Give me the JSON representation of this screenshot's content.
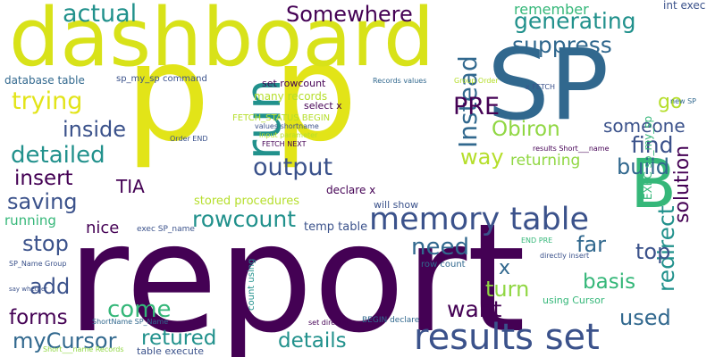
{
  "colors": {
    "background": "#ffffff",
    "purple": "#440154",
    "indigo": "#3b528b",
    "blue": "#31688e",
    "teal": "#21918c",
    "green": "#35b779",
    "lime": "#90d743",
    "yellow": "#e2e418"
  },
  "words": [
    {
      "text": "report",
      "color": "#440154",
      "vertical": false
    },
    {
      "text": "p",
      "color": "#e2e418",
      "vertical": false
    },
    {
      "text": "p",
      "color": "#e2e418",
      "vertical": false
    },
    {
      "text": "SP",
      "color": "#31688e",
      "vertical": false
    },
    {
      "text": "dashboard",
      "color": "#d8e219",
      "vertical": false
    },
    {
      "text": "B",
      "color": "#35b779",
      "vertical": false
    },
    {
      "text": "results set",
      "color": "#3b528b",
      "vertical": false
    },
    {
      "text": "run",
      "color": "#21918c",
      "vertical": true
    },
    {
      "text": "memory table",
      "color": "#3b528b",
      "vertical": false
    },
    {
      "text": "Somewhere",
      "color": "#440154",
      "vertical": false
    },
    {
      "text": "actual",
      "color": "#21918c",
      "vertical": false
    },
    {
      "text": "generating",
      "color": "#21918c",
      "vertical": false
    },
    {
      "text": "suppress",
      "color": "#31688e",
      "vertical": false
    },
    {
      "text": "remember",
      "color": "#35b779",
      "vertical": false
    },
    {
      "text": "int exec",
      "color": "#3b528b",
      "vertical": false
    },
    {
      "text": "trying",
      "color": "#e2e418",
      "vertical": false
    },
    {
      "text": "Instead",
      "color": "#31688e",
      "vertical": true
    },
    {
      "text": "PRE",
      "color": "#440154",
      "vertical": false
    },
    {
      "text": "go",
      "color": "#b5de2b",
      "vertical": false
    },
    {
      "text": "inside",
      "color": "#3b528b",
      "vertical": false
    },
    {
      "text": "Obiron",
      "color": "#90d743",
      "vertical": false
    },
    {
      "text": "someone",
      "color": "#3b528b",
      "vertical": false
    },
    {
      "text": "detailed",
      "color": "#21918c",
      "vertical": false
    },
    {
      "text": "output",
      "color": "#3b528b",
      "vertical": false
    },
    {
      "text": "find",
      "color": "#3b528b",
      "vertical": false
    },
    {
      "text": "solution",
      "color": "#440154",
      "vertical": true
    },
    {
      "text": "insert",
      "color": "#440154",
      "vertical": false
    },
    {
      "text": "way",
      "color": "#b5de2b",
      "vertical": false
    },
    {
      "text": "build",
      "color": "#31688e",
      "vertical": false
    },
    {
      "text": "saving",
      "color": "#3b528b",
      "vertical": false
    },
    {
      "text": "TIA",
      "color": "#440154",
      "vertical": false
    },
    {
      "text": "returning",
      "color": "#90d743",
      "vertical": false
    },
    {
      "text": "rowcount",
      "color": "#21918c",
      "vertical": false
    },
    {
      "text": "need",
      "color": "#31688e",
      "vertical": false
    },
    {
      "text": "redirect",
      "color": "#21918c",
      "vertical": true
    },
    {
      "text": "stop",
      "color": "#3b528b",
      "vertical": false
    },
    {
      "text": "far",
      "color": "#31688e",
      "vertical": false
    },
    {
      "text": "top",
      "color": "#3b528b",
      "vertical": false
    },
    {
      "text": "nice",
      "color": "#440154",
      "vertical": false
    },
    {
      "text": "x",
      "color": "#31688e",
      "vertical": false
    },
    {
      "text": "add",
      "color": "#3b528b",
      "vertical": false
    },
    {
      "text": "basis",
      "color": "#35b779",
      "vertical": false
    },
    {
      "text": "turn",
      "color": "#90d743",
      "vertical": false
    },
    {
      "text": "come",
      "color": "#35b779",
      "vertical": false
    },
    {
      "text": "want",
      "color": "#440154",
      "vertical": false
    },
    {
      "text": "forms",
      "color": "#440154",
      "vertical": false
    },
    {
      "text": "used",
      "color": "#31688e",
      "vertical": false
    },
    {
      "text": "myCursor",
      "color": "#31688e",
      "vertical": false
    },
    {
      "text": "retured",
      "color": "#21918c",
      "vertical": false
    },
    {
      "text": "details",
      "color": "#21918c",
      "vertical": false
    },
    {
      "text": "running",
      "color": "#35b779",
      "vertical": false
    },
    {
      "text": "stored procedures",
      "color": "#b5de2b",
      "vertical": false
    },
    {
      "text": "EXEC sp_my_sp",
      "color": "#35b779",
      "vertical": true
    },
    {
      "text": "temp table",
      "color": "#3b528b",
      "vertical": false
    },
    {
      "text": "database table",
      "color": "#31688e",
      "vertical": false
    },
    {
      "text": "sp_my_sp command",
      "color": "#3b528b",
      "vertical": false
    },
    {
      "text": "set rowcount",
      "color": "#440154",
      "vertical": false
    },
    {
      "text": "many records",
      "color": "#b5de2b",
      "vertical": false
    },
    {
      "text": "select x",
      "color": "#440154",
      "vertical": false
    },
    {
      "text": "FETCH_STATUS BEGIN",
      "color": "#b5de2b",
      "vertical": false
    },
    {
      "text": "Records values",
      "color": "#31688e",
      "vertical": false
    },
    {
      "text": "Group Order",
      "color": "#b5de2b",
      "vertical": false
    },
    {
      "text": "x FETCH",
      "color": "#3b528b",
      "vertical": false
    },
    {
      "text": "new SP",
      "color": "#31688e",
      "vertical": false
    },
    {
      "text": "values shortname",
      "color": "#3b528b",
      "vertical": false
    },
    {
      "text": "input parameter",
      "color": "#b5de2b",
      "vertical": false
    },
    {
      "text": "FETCH NEXT",
      "color": "#440154",
      "vertical": false
    },
    {
      "text": "Order END",
      "color": "#3b528b",
      "vertical": false
    },
    {
      "text": "will show",
      "color": "#3b528b",
      "vertical": false
    },
    {
      "text": "results Short___name",
      "color": "#440154",
      "vertical": false
    },
    {
      "text": "declare x",
      "color": "#440154",
      "vertical": false
    },
    {
      "text": "exec SP_name",
      "color": "#3b528b",
      "vertical": false
    },
    {
      "text": "END PRE",
      "color": "#35b779",
      "vertical": false
    },
    {
      "text": "SP_Name Group",
      "color": "#3b528b",
      "vertical": false
    },
    {
      "text": "count using",
      "color": "#21918c",
      "vertical": true
    },
    {
      "text": "directly insert",
      "color": "#3b528b",
      "vertical": false
    },
    {
      "text": "row count",
      "color": "#31688e",
      "vertical": false
    },
    {
      "text": "using Cursor",
      "color": "#35b779",
      "vertical": false
    },
    {
      "text": "say whether",
      "color": "#3b528b",
      "vertical": false
    },
    {
      "text": "ShortName SP_Name",
      "color": "#31688e",
      "vertical": false
    },
    {
      "text": "set directly",
      "color": "#440154",
      "vertical": false
    },
    {
      "text": "BEGIN declare",
      "color": "#31688e",
      "vertical": false
    },
    {
      "text": "Short___name Records",
      "color": "#90d743",
      "vertical": false
    },
    {
      "text": "table execute",
      "color": "#3b528b",
      "vertical": false
    }
  ]
}
